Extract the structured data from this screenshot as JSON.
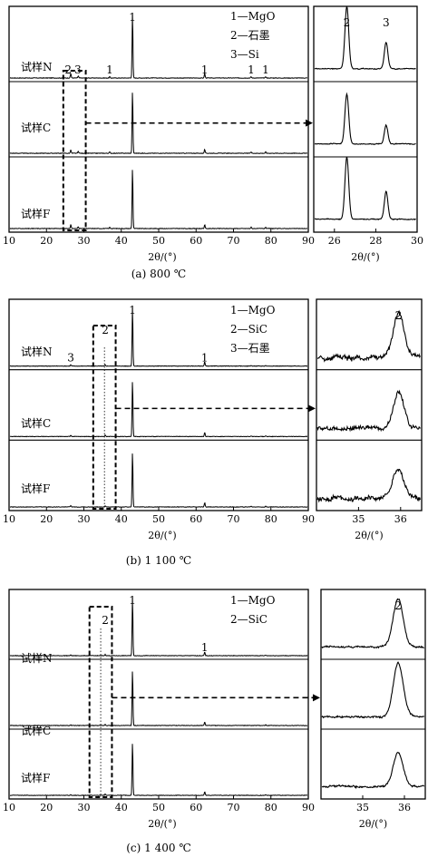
{
  "chart_data": [
    {
      "type": "line",
      "caption": "(a) 800 ℃",
      "xlabel": "2θ/(°)",
      "xlim": [
        10,
        90
      ],
      "xticks": [
        10,
        20,
        30,
        40,
        50,
        60,
        70,
        80,
        90
      ],
      "samples": [
        "试样N",
        "试样C",
        "试样F"
      ],
      "legend": [
        "1—MgO",
        "2—石墨",
        "3—Si"
      ],
      "peak_markers": [
        {
          "label": "1",
          "x": 43
        },
        {
          "label": "1",
          "x": 62.3
        },
        {
          "label": "1",
          "x": 74.7
        },
        {
          "label": "1",
          "x": 78.6
        },
        {
          "label": "1",
          "x": 36.9
        },
        {
          "label": "2",
          "x": 26.5
        },
        {
          "label": "3",
          "x": 28.5
        }
      ],
      "peaks": [
        {
          "x": 26.5,
          "h": [
            0.07,
            0.05,
            0.06
          ]
        },
        {
          "x": 28.5,
          "h": [
            0.03,
            0.03,
            0.03
          ]
        },
        {
          "x": 36.9,
          "h": [
            0.02,
            0.02,
            0.02
          ]
        },
        {
          "x": 43.0,
          "h": [
            0.97,
            0.95,
            0.92
          ]
        },
        {
          "x": 62.3,
          "h": [
            0.07,
            0.06,
            0.06
          ]
        },
        {
          "x": 74.7,
          "h": [
            0.02,
            0.02,
            0.02
          ]
        },
        {
          "x": 78.6,
          "h": [
            0.02,
            0.02,
            0.02
          ]
        }
      ],
      "box_x": [
        24.5,
        30.5
      ],
      "inset": {
        "xlabel": "2θ/(°)",
        "xlim": [
          25,
          30
        ],
        "xticks": [
          26,
          28,
          30
        ],
        "marker_labels": [
          {
            "label": "2",
            "x": 26.6
          },
          {
            "label": "3",
            "x": 28.5
          }
        ],
        "peaks": [
          {
            "x": 26.6,
            "w": 0.13,
            "h": [
              1.0,
              0.8,
              1.0
            ]
          },
          {
            "x": 28.5,
            "w": 0.12,
            "h": [
              0.42,
              0.3,
              0.45
            ]
          }
        ]
      }
    },
    {
      "type": "line",
      "caption": "(b) 1 100 ℃",
      "xlabel": "2θ/(°)",
      "xlim": [
        10,
        90
      ],
      "xticks": [
        10,
        20,
        30,
        40,
        50,
        60,
        70,
        80,
        90
      ],
      "samples": [
        "试样N",
        "试样C",
        "试样F"
      ],
      "legend": [
        "1—MgO",
        "2—SiC",
        "3—石墨"
      ],
      "peak_markers": [
        {
          "label": "1",
          "x": 43
        },
        {
          "label": "1",
          "x": 62.3
        },
        {
          "label": "2",
          "x": 35.7
        },
        {
          "label": "3",
          "x": 26.5
        }
      ],
      "peaks": [
        {
          "x": 26.5,
          "h": [
            0.02,
            0.02,
            0.02
          ]
        },
        {
          "x": 35.7,
          "h": [
            0.02,
            0.02,
            0.02
          ]
        },
        {
          "x": 43.0,
          "h": [
            0.95,
            0.92,
            0.9
          ]
        },
        {
          "x": 62.3,
          "h": [
            0.07,
            0.07,
            0.07
          ]
        },
        {
          "x": 74.7,
          "h": [
            0.01,
            0.01,
            0.01
          ]
        },
        {
          "x": 78.6,
          "h": [
            0.01,
            0.01,
            0.01
          ]
        }
      ],
      "box_x": [
        32.5,
        38.5
      ],
      "inset": {
        "xlabel": "2θ/(°)",
        "xlim": [
          34,
          36.5
        ],
        "xticks": [
          35,
          36
        ],
        "marker_labels": [
          {
            "label": "2",
            "x": 35.95
          }
        ],
        "peaks": [
          {
            "x": 35.95,
            "w": 0.18,
            "h": [
              0.75,
              0.6,
              0.5
            ]
          }
        ],
        "noise": 0.06
      }
    },
    {
      "type": "line",
      "caption": "(c) 1 400 ℃",
      "xlabel": "2θ/(°)",
      "xlim": [
        10,
        90
      ],
      "xticks": [
        10,
        20,
        30,
        40,
        50,
        60,
        70,
        80,
        90
      ],
      "samples": [
        "试样N",
        "试样C",
        "试样F"
      ],
      "legend": [
        "1—MgO",
        "2—SiC"
      ],
      "peak_markers": [
        {
          "label": "1",
          "x": 43
        },
        {
          "label": "1",
          "x": 62.3
        },
        {
          "label": "2",
          "x": 35.7
        }
      ],
      "peaks": [
        {
          "x": 26.5,
          "h": [
            0.01,
            0.01,
            0.01
          ]
        },
        {
          "x": 35.7,
          "h": [
            0.02,
            0.02,
            0.02
          ]
        },
        {
          "x": 43.0,
          "h": [
            0.95,
            0.92,
            0.88
          ]
        },
        {
          "x": 62.3,
          "h": [
            0.06,
            0.06,
            0.06
          ]
        },
        {
          "x": 78.6,
          "h": [
            0.01,
            0.01,
            0.01
          ]
        }
      ],
      "box_x": [
        31.5,
        37.5
      ],
      "inset": {
        "xlabel": "2θ/(°)",
        "xlim": [
          34,
          36.5
        ],
        "xticks": [
          35,
          36
        ],
        "marker_labels": [
          {
            "label": "2",
            "x": 35.85
          }
        ],
        "peaks": [
          {
            "x": 35.85,
            "w": 0.17,
            "h": [
              0.85,
              0.95,
              0.6
            ]
          }
        ],
        "noise": 0.025
      }
    }
  ]
}
